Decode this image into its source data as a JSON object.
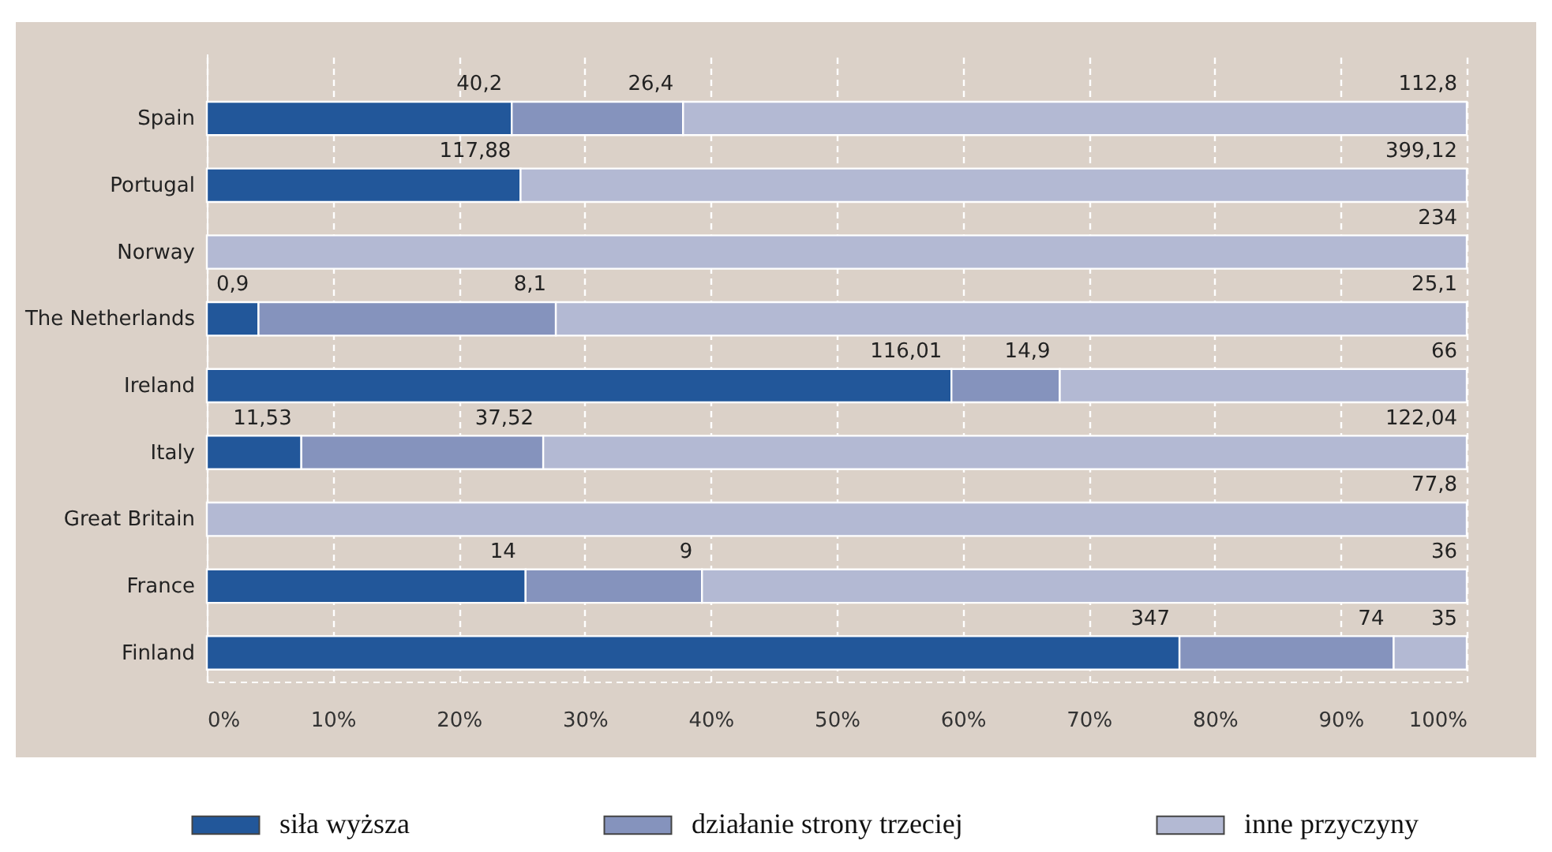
{
  "chart_data": {
    "type": "bar",
    "orientation": "horizontal",
    "stacked": true,
    "categories": [
      "Spain",
      "Portugal",
      "Norway",
      "The Netherlands",
      "Ireland",
      "Italy",
      "Great Britain",
      "France",
      "Finland"
    ],
    "series": [
      {
        "name": "siła wyższa",
        "color": "#22579a",
        "values": [
          24.2,
          24.9,
          null,
          4.1,
          59.1,
          7.5,
          null,
          25.3,
          77.2
        ]
      },
      {
        "name": "działanie strony trzeciej",
        "color": "#8593bd",
        "values": [
          13.6,
          null,
          null,
          23.6,
          8.6,
          19.2,
          null,
          14.0,
          17.0
        ]
      },
      {
        "name": "inne przyczyny",
        "color": "#b3b9d3",
        "values": [
          62.2,
          75.1,
          100,
          72.3,
          32.3,
          73.3,
          100,
          60.7,
          5.8
        ]
      }
    ],
    "annotations": [
      {
        "text": "40,2",
        "x": 24.2,
        "y": "Spain"
      },
      {
        "text": "26,4",
        "x": 37.8,
        "y": "Spain"
      },
      {
        "text": "112,8",
        "x": 100,
        "y": "Spain"
      },
      {
        "text": "117,88",
        "x": 24.9,
        "y": "Portugal"
      },
      {
        "text": "399,12",
        "x": 100,
        "y": "Portugal"
      },
      {
        "text": "234",
        "x": 100,
        "y": "Norway"
      },
      {
        "text": "0,9",
        "x": 4.1,
        "y": "The Netherlands"
      },
      {
        "text": "8,1",
        "x": 27.7,
        "y": "The Netherlands"
      },
      {
        "text": "25,1",
        "x": 100,
        "y": "The Netherlands"
      },
      {
        "text": "116,01",
        "x": 59.1,
        "y": "Ireland"
      },
      {
        "text": "14,9",
        "x": 67.7,
        "y": "Ireland"
      },
      {
        "text": "66",
        "x": 100,
        "y": "Ireland"
      },
      {
        "text": "11,53",
        "x": 7.5,
        "y": "Italy"
      },
      {
        "text": "37,52",
        "x": 26.7,
        "y": "Italy"
      },
      {
        "text": "122,04",
        "x": 100,
        "y": "Italy"
      },
      {
        "text": "77,8",
        "x": 100,
        "y": "Great Britain"
      },
      {
        "text": "14",
        "x": 25.3,
        "y": "France"
      },
      {
        "text": "9",
        "x": 39.3,
        "y": "France"
      },
      {
        "text": "36",
        "x": 100,
        "y": "France"
      },
      {
        "text": "347",
        "x": 77.2,
        "y": "Finland"
      },
      {
        "text": "74",
        "x": 94.2,
        "y": "Finland"
      },
      {
        "text": "35",
        "x": 100,
        "y": "Finland"
      }
    ],
    "xlim": [
      0,
      100
    ],
    "xticks": [
      {
        "value": 0,
        "label": "0%"
      },
      {
        "value": 10,
        "label": "10%"
      },
      {
        "value": 20,
        "label": "20%"
      },
      {
        "value": 30,
        "label": "30%"
      },
      {
        "value": 40,
        "label": "40%"
      },
      {
        "value": 50,
        "label": "50%"
      },
      {
        "value": 60,
        "label": "60%"
      },
      {
        "value": 70,
        "label": "70%"
      },
      {
        "value": 80,
        "label": "80%"
      },
      {
        "value": 90,
        "label": "90%"
      },
      {
        "value": 100,
        "label": "100%"
      }
    ],
    "grid": "x",
    "legend": "bottom"
  }
}
